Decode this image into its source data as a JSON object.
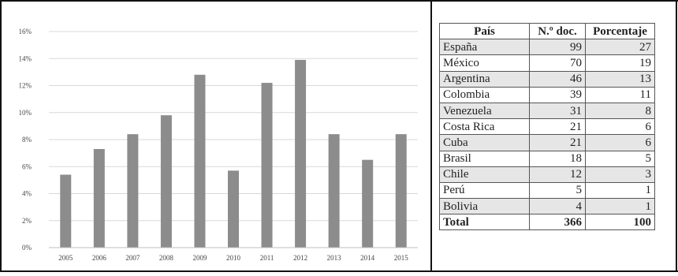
{
  "chart_data": {
    "type": "bar",
    "categories": [
      "2005",
      "2006",
      "2007",
      "2008",
      "2009",
      "2010",
      "2011",
      "2012",
      "2013",
      "2014",
      "2015"
    ],
    "values": [
      5.4,
      7.3,
      8.4,
      9.8,
      12.8,
      5.7,
      12.2,
      13.9,
      8.4,
      6.5,
      8.4
    ],
    "ylim": [
      0,
      16
    ],
    "yticks": [
      "0%",
      "2%",
      "4%",
      "6%",
      "8%",
      "10%",
      "12%",
      "14%",
      "16%"
    ],
    "ytick_values": [
      0,
      2,
      4,
      6,
      8,
      10,
      12,
      14,
      16
    ],
    "grid": true,
    "bar_color": "#8c8c8c",
    "title": "",
    "xlabel": "",
    "ylabel": ""
  },
  "table": {
    "headers": [
      "País",
      "N.º doc.",
      "Porcentaje"
    ],
    "rows": [
      [
        "España",
        "99",
        "27"
      ],
      [
        "México",
        "70",
        "19"
      ],
      [
        "Argentina",
        "46",
        "13"
      ],
      [
        "Colombia",
        "39",
        "11"
      ],
      [
        "Venezuela",
        "31",
        "8"
      ],
      [
        "Costa Rica",
        "21",
        "6"
      ],
      [
        "Cuba",
        "21",
        "6"
      ],
      [
        "Brasil",
        "18",
        "5"
      ],
      [
        "Chile",
        "12",
        "3"
      ],
      [
        "Perú",
        "5",
        "1"
      ],
      [
        "Bolivia",
        "4",
        "1"
      ]
    ],
    "total": [
      "Total",
      "366",
      "100"
    ]
  }
}
